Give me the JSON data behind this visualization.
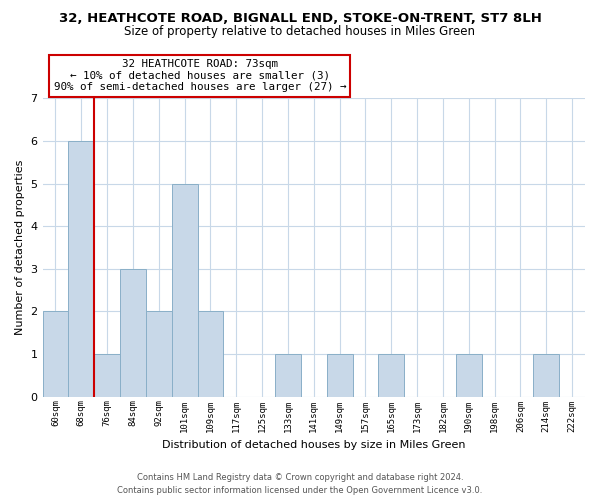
{
  "title_line1": "32, HEATHCOTE ROAD, BIGNALL END, STOKE-ON-TRENT, ST7 8LH",
  "title_line2": "Size of property relative to detached houses in Miles Green",
  "xlabel": "Distribution of detached houses by size in Miles Green",
  "ylabel": "Number of detached properties",
  "bin_labels": [
    "60sqm",
    "68sqm",
    "76sqm",
    "84sqm",
    "92sqm",
    "101sqm",
    "109sqm",
    "117sqm",
    "125sqm",
    "133sqm",
    "141sqm",
    "149sqm",
    "157sqm",
    "165sqm",
    "173sqm",
    "182sqm",
    "190sqm",
    "198sqm",
    "206sqm",
    "214sqm",
    "222sqm"
  ],
  "bar_heights": [
    2,
    6,
    1,
    3,
    2,
    5,
    2,
    0,
    0,
    1,
    0,
    1,
    0,
    1,
    0,
    0,
    1,
    0,
    0,
    1,
    0
  ],
  "bar_color": "#c8d8e8",
  "bar_edge_color": "#8aafc8",
  "vline_color": "#cc0000",
  "vline_x": 1.5,
  "ylim": [
    0,
    7
  ],
  "yticks": [
    0,
    1,
    2,
    3,
    4,
    5,
    6,
    7
  ],
  "annotation_text": "32 HEATHCOTE ROAD: 73sqm\n← 10% of detached houses are smaller (3)\n90% of semi-detached houses are larger (27) →",
  "annotation_box_color": "#ffffff",
  "annotation_box_edge": "#cc0000",
  "footer_line1": "Contains HM Land Registry data © Crown copyright and database right 2024.",
  "footer_line2": "Contains public sector information licensed under the Open Government Licence v3.0.",
  "background_color": "#ffffff",
  "grid_color": "#c8d8e8"
}
